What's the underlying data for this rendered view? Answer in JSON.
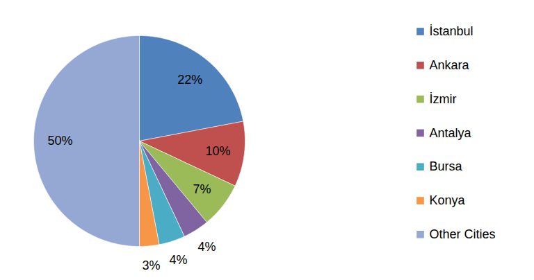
{
  "chart_data": {
    "type": "pie",
    "categories": [
      "İstanbul",
      "Ankara",
      "İzmir",
      "Antalya",
      "Bursa",
      "Konya",
      "Other Cities"
    ],
    "values": [
      22,
      10,
      7,
      4,
      4,
      3,
      50
    ],
    "value_labels": [
      "22%",
      "10%",
      "7%",
      "4%",
      "4%",
      "3%",
      "50%"
    ],
    "colors": [
      "#4f81bd",
      "#c0504d",
      "#9bbb59",
      "#8064a2",
      "#4bacc6",
      "#f79646",
      "#95a8d4"
    ],
    "data_labels": true,
    "legend": "right"
  }
}
